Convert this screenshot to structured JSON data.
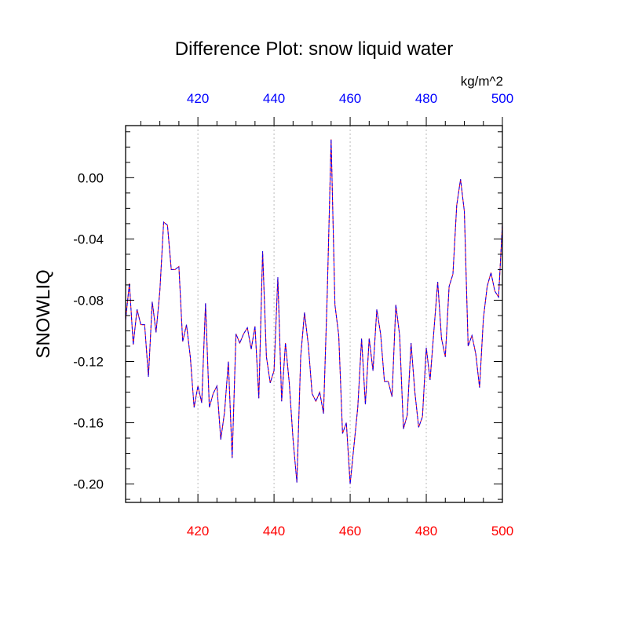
{
  "chart_data": {
    "type": "line",
    "title": "Difference Plot: snow liquid water",
    "units": "kg/m^2",
    "ylabel": "SNOWLIQ",
    "xlabel": "",
    "xlim": [
      401,
      500
    ],
    "ylim": [
      -0.212,
      0.034
    ],
    "x_ticks": [
      "420",
      "440",
      "460",
      "480",
      "500"
    ],
    "y_ticks": [
      "0.00",
      "-0.04",
      "-0.08",
      "-0.12",
      "-0.16",
      "-0.20"
    ],
    "grid": "vertical dotted at major x ticks",
    "colors": {
      "bottom_tick_labels": "#ff0000",
      "top_tick_labels": "#0000ff",
      "series_a": "#ff0000",
      "series_b": "#0000ff",
      "grid": "#bbbbbb"
    },
    "x": [
      401,
      402,
      403,
      404,
      405,
      406,
      407,
      408,
      409,
      410,
      411,
      412,
      413,
      414,
      415,
      416,
      417,
      418,
      419,
      420,
      421,
      422,
      423,
      424,
      425,
      426,
      427,
      428,
      429,
      430,
      431,
      432,
      433,
      434,
      435,
      436,
      437,
      438,
      439,
      440,
      441,
      442,
      443,
      444,
      445,
      446,
      447,
      448,
      449,
      450,
      451,
      452,
      453,
      454,
      455,
      456,
      457,
      458,
      459,
      460,
      461,
      462,
      463,
      464,
      465,
      466,
      467,
      468,
      469,
      470,
      471,
      472,
      473,
      474,
      475,
      476,
      477,
      478,
      479,
      480,
      481,
      482,
      483,
      484,
      485,
      486,
      487,
      488,
      489,
      490,
      491,
      492,
      493,
      494,
      495,
      496,
      497,
      498,
      499,
      500
    ],
    "series": [
      {
        "values": [
          -0.093,
          -0.069,
          -0.109,
          -0.086,
          -0.096,
          -0.096,
          -0.13,
          -0.081,
          -0.101,
          -0.074,
          -0.029,
          -0.031,
          -0.06,
          -0.06,
          -0.058,
          -0.107,
          -0.096,
          -0.117,
          -0.15,
          -0.136,
          -0.147,
          -0.082,
          -0.15,
          -0.141,
          -0.136,
          -0.171,
          -0.153,
          -0.12,
          -0.183,
          -0.102,
          -0.108,
          -0.102,
          -0.098,
          -0.112,
          -0.097,
          -0.144,
          -0.048,
          -0.117,
          -0.134,
          -0.126,
          -0.065,
          -0.146,
          -0.108,
          -0.134,
          -0.171,
          -0.199,
          -0.117,
          -0.088,
          -0.109,
          -0.141,
          -0.146,
          -0.14,
          -0.154,
          -0.074,
          0.025,
          -0.083,
          -0.103,
          -0.167,
          -0.16,
          -0.2,
          -0.175,
          -0.15,
          -0.105,
          -0.148,
          -0.105,
          -0.126,
          -0.086,
          -0.102,
          -0.133,
          -0.133,
          -0.143,
          -0.083,
          -0.103,
          -0.164,
          -0.155,
          -0.108,
          -0.14,
          -0.163,
          -0.156,
          -0.111,
          -0.132,
          -0.1,
          -0.068,
          -0.105,
          -0.117,
          -0.071,
          -0.063,
          -0.018,
          -0.001,
          -0.022,
          -0.11,
          -0.103,
          -0.115,
          -0.137,
          -0.092,
          -0.071,
          -0.062,
          -0.074,
          -0.078,
          -0.03
        ]
      },
      {
        "values": [
          -0.093,
          -0.069,
          -0.109,
          -0.086,
          -0.096,
          -0.096,
          -0.13,
          -0.081,
          -0.101,
          -0.074,
          -0.029,
          -0.031,
          -0.06,
          -0.06,
          -0.058,
          -0.107,
          -0.096,
          -0.117,
          -0.15,
          -0.136,
          -0.147,
          -0.082,
          -0.15,
          -0.141,
          -0.136,
          -0.171,
          -0.153,
          -0.12,
          -0.183,
          -0.102,
          -0.108,
          -0.102,
          -0.098,
          -0.112,
          -0.097,
          -0.144,
          -0.048,
          -0.117,
          -0.134,
          -0.126,
          -0.065,
          -0.146,
          -0.108,
          -0.134,
          -0.171,
          -0.199,
          -0.117,
          -0.088,
          -0.109,
          -0.141,
          -0.146,
          -0.14,
          -0.154,
          -0.074,
          0.025,
          -0.083,
          -0.103,
          -0.167,
          -0.16,
          -0.2,
          -0.175,
          -0.15,
          -0.105,
          -0.148,
          -0.105,
          -0.126,
          -0.086,
          -0.102,
          -0.133,
          -0.133,
          -0.143,
          -0.083,
          -0.103,
          -0.164,
          -0.155,
          -0.108,
          -0.14,
          -0.163,
          -0.156,
          -0.111,
          -0.132,
          -0.1,
          -0.068,
          -0.105,
          -0.117,
          -0.071,
          -0.063,
          -0.018,
          -0.001,
          -0.022,
          -0.11,
          -0.103,
          -0.115,
          -0.137,
          -0.092,
          -0.071,
          -0.062,
          -0.074,
          -0.078,
          -0.03
        ]
      }
    ]
  }
}
